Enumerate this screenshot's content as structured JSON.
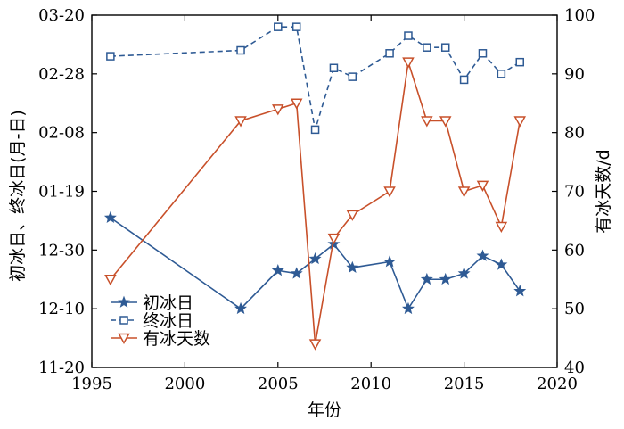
{
  "chart_data": {
    "type": "line",
    "xlabel": "年份",
    "ylabel_left": "初冰日、终冰日(月-日)",
    "ylabel_right": "有冰天数/d",
    "xlim": [
      1995,
      2020
    ],
    "x_ticks": [
      "1995",
      "2000",
      "2005",
      "2010",
      "2015",
      "2020"
    ],
    "y_left_ticks": [
      "11-20",
      "12-10",
      "12-30",
      "01-19",
      "02-08",
      "02-28",
      "03-20"
    ],
    "y_left_lim": [
      0,
      120
    ],
    "y_right_ticks": [
      "40",
      "50",
      "60",
      "70",
      "80",
      "90",
      "100"
    ],
    "y_right_lim": [
      40,
      100
    ],
    "legend_position": "lower-left",
    "series": [
      {
        "name": "初冰日",
        "axis": "left",
        "color": "#2e5a94",
        "marker": "star",
        "line_style": "solid",
        "x": [
          1996,
          2003,
          2005,
          2006,
          2007,
          2008,
          2009,
          2011,
          2012,
          2013,
          2014,
          2015,
          2016,
          2017,
          2018
        ],
        "values": [
          51,
          20,
          33,
          32,
          37,
          42,
          34,
          36,
          20,
          30,
          30,
          32,
          38,
          35,
          26
        ]
      },
      {
        "name": "终冰日",
        "axis": "left",
        "color": "#2e5a94",
        "marker": "square",
        "line_style": "dashed",
        "x": [
          1996,
          2003,
          2005,
          2006,
          2007,
          2008,
          2009,
          2011,
          2012,
          2013,
          2014,
          2015,
          2016,
          2017,
          2018
        ],
        "values": [
          106,
          108,
          116,
          116,
          81,
          102,
          99,
          107,
          113,
          109,
          109,
          98,
          107,
          100,
          104
        ]
      },
      {
        "name": "有冰天数",
        "axis": "right",
        "color": "#c8502a",
        "marker": "triangle-down",
        "line_style": "solid",
        "x": [
          1996,
          2003,
          2005,
          2006,
          2007,
          2008,
          2009,
          2011,
          2012,
          2013,
          2014,
          2015,
          2016,
          2017,
          2018
        ],
        "values": [
          55,
          82,
          84,
          85,
          44,
          62,
          66,
          70,
          92,
          82,
          82,
          70,
          71,
          64,
          82
        ]
      }
    ]
  }
}
